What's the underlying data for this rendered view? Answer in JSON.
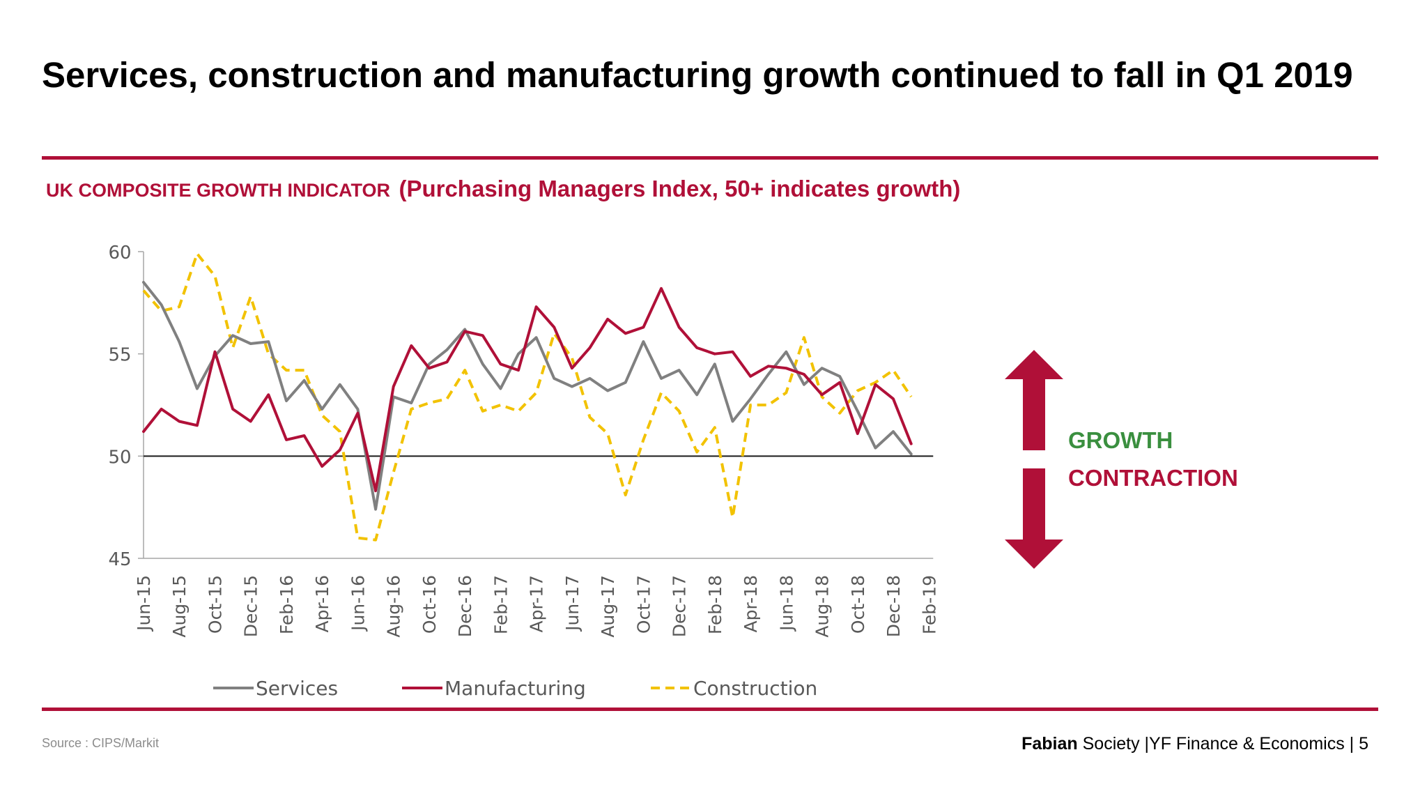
{
  "slide": {
    "title": "Services, construction and manufacturing growth continued to fall in Q1 2019",
    "chart_heading_main": "UK COMPOSITE GROWTH INDICATOR",
    "chart_heading_sub": "(Purchasing Managers Index, 50+ indicates growth)",
    "source": "Source : CIPS/Markit",
    "footer_brand": "Fabian",
    "footer_text": "Society |YF Finance & Economics | 5"
  },
  "indicator": {
    "growth_label": "GROWTH",
    "contraction_label": "CONTRACTION",
    "arrow_color": "#b01038",
    "growth_color": "#3a8f3f",
    "contraction_color": "#b01038"
  },
  "chart_data": {
    "type": "line",
    "title": "UK COMPOSITE GROWTH INDICATOR (Purchasing Managers Index, 50+ indicates growth)",
    "ylim": [
      45,
      60
    ],
    "yticks": [
      45,
      50,
      55,
      60
    ],
    "reference_line": 50,
    "grid": false,
    "legend_position": "bottom",
    "categories": [
      "Jun-15",
      "Jul-15",
      "Aug-15",
      "Sep-15",
      "Oct-15",
      "Nov-15",
      "Dec-15",
      "Jan-16",
      "Feb-16",
      "Mar-16",
      "Apr-16",
      "May-16",
      "Jun-16",
      "Jul-16",
      "Aug-16",
      "Sep-16",
      "Oct-16",
      "Nov-16",
      "Dec-16",
      "Jan-17",
      "Feb-17",
      "Mar-17",
      "Apr-17",
      "May-17",
      "Jun-17",
      "Jul-17",
      "Aug-17",
      "Sep-17",
      "Oct-17",
      "Nov-17",
      "Dec-17",
      "Jan-18",
      "Feb-18",
      "Mar-18",
      "Apr-18",
      "May-18",
      "Jun-18",
      "Jul-18",
      "Aug-18",
      "Sep-18",
      "Oct-18",
      "Nov-18",
      "Dec-18",
      "Jan-19",
      "Feb-19"
    ],
    "tick_labels": [
      "Jun-15",
      "Aug-15",
      "Oct-15",
      "Dec-15",
      "Feb-16",
      "Apr-16",
      "Jun-16",
      "Aug-16",
      "Oct-16",
      "Dec-16",
      "Feb-17",
      "Apr-17",
      "Jun-17",
      "Aug-17",
      "Oct-17",
      "Dec-17",
      "Feb-18",
      "Apr-18",
      "Jun-18",
      "Aug-18",
      "Oct-18",
      "Dec-18",
      "Feb-19"
    ],
    "series": [
      {
        "name": "Services",
        "color": "#808080",
        "dashed": false,
        "values": [
          58.5,
          57.4,
          55.6,
          53.3,
          54.9,
          55.9,
          55.5,
          55.6,
          52.7,
          53.7,
          52.3,
          53.5,
          52.3,
          47.4,
          52.9,
          52.6,
          54.5,
          55.2,
          56.2,
          54.5,
          53.3,
          55.0,
          55.8,
          53.8,
          53.4,
          53.8,
          53.2,
          53.6,
          55.6,
          53.8,
          54.2,
          53.0,
          54.5,
          51.7,
          52.8,
          54.0,
          55.1,
          53.5,
          54.3,
          53.9,
          52.2,
          50.4,
          51.2,
          50.1,
          null
        ]
      },
      {
        "name": "Manufacturing",
        "color": "#b01038",
        "dashed": false,
        "values": [
          51.2,
          52.3,
          51.7,
          51.5,
          55.1,
          52.3,
          51.7,
          53.0,
          50.8,
          51.0,
          49.5,
          50.3,
          52.1,
          48.3,
          53.4,
          55.4,
          54.3,
          54.6,
          56.1,
          55.9,
          54.5,
          54.2,
          57.3,
          56.3,
          54.3,
          55.3,
          56.7,
          56.0,
          56.3,
          58.2,
          56.3,
          55.3,
          55.0,
          55.1,
          53.9,
          54.4,
          54.3,
          54.0,
          53.0,
          53.6,
          51.1,
          53.5,
          52.8,
          50.6,
          null
        ]
      },
      {
        "name": "Construction",
        "color": "#f2c200",
        "dashed": true,
        "values": [
          58.1,
          57.1,
          57.3,
          59.9,
          58.8,
          55.3,
          57.8,
          55.0,
          54.2,
          54.2,
          52.0,
          51.2,
          46.0,
          45.9,
          49.2,
          52.3,
          52.6,
          52.8,
          54.2,
          52.2,
          52.5,
          52.2,
          53.1,
          56.0,
          54.8,
          51.9,
          51.1,
          48.1,
          50.8,
          53.1,
          52.2,
          50.2,
          51.4,
          47.0,
          52.5,
          52.5,
          53.1,
          55.8,
          52.9,
          52.1,
          53.2,
          53.6,
          54.2,
          52.9,
          null
        ]
      }
    ]
  }
}
